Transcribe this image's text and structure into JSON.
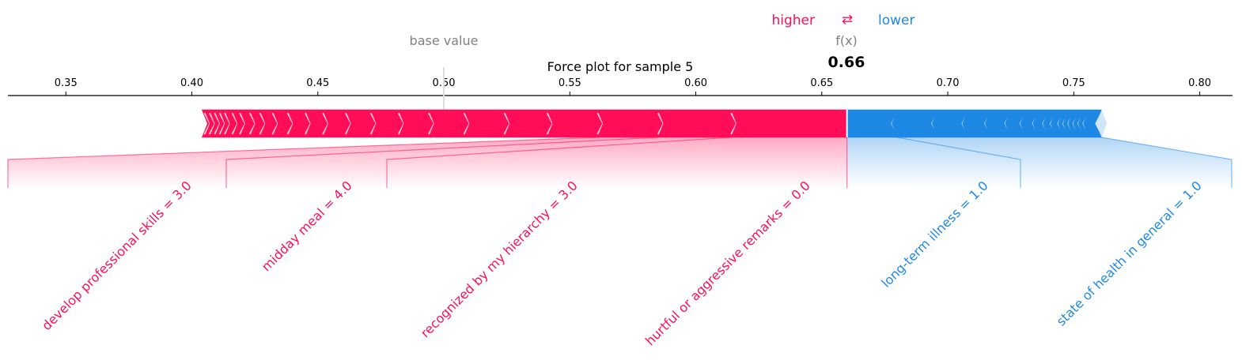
{
  "chart_data": {
    "type": "force",
    "title": "Force plot for sample 5",
    "xlim": [
      0.327,
      0.813
    ],
    "ticks": [
      {
        "v": 0.35,
        "label": "0.35"
      },
      {
        "v": 0.4,
        "label": "0.40"
      },
      {
        "v": 0.45,
        "label": "0.45"
      },
      {
        "v": 0.5,
        "label": "0.50"
      },
      {
        "v": 0.55,
        "label": "0.55"
      },
      {
        "v": 0.6,
        "label": "0.60"
      },
      {
        "v": 0.65,
        "label": "0.65"
      },
      {
        "v": 0.7,
        "label": "0.70"
      },
      {
        "v": 0.75,
        "label": "0.75"
      },
      {
        "v": 0.8,
        "label": "0.80"
      }
    ],
    "base_value": 0.5,
    "base_value_label": "base value",
    "fx_label": "f(x)",
    "fx_value": 0.66,
    "fx_text": "0.66",
    "legend": {
      "higher": "higher",
      "lower": "lower",
      "arrows": "⇄"
    },
    "colors": {
      "positive": "#ff0d57",
      "negative": "#1e88e5",
      "positive_light": "#ffc3d5",
      "negative_light": "#d1e6fa"
    },
    "positive_boundaries": [
      0.404,
      0.405,
      0.407,
      0.409,
      0.411,
      0.413,
      0.416,
      0.419,
      0.423,
      0.427,
      0.432,
      0.438,
      0.445,
      0.452,
      0.461,
      0.471,
      0.482,
      0.494,
      0.508,
      0.524,
      0.541,
      0.561,
      0.585,
      0.614,
      0.66
    ],
    "negative_boundaries": [
      0.66,
      0.68,
      0.696,
      0.708,
      0.717,
      0.725,
      0.731,
      0.736,
      0.74,
      0.743,
      0.746,
      0.748,
      0.75,
      0.752,
      0.754,
      0.756,
      0.761
    ],
    "features": [
      {
        "label": "develop professional skills = 3.0",
        "from": 0.404,
        "to": 0.561,
        "effect": "positive"
      },
      {
        "label": "midday meal = 4.0",
        "from": 0.561,
        "to": 0.585,
        "effect": "positive"
      },
      {
        "label": "recognized by my hierarchy = 3.0",
        "from": 0.585,
        "to": 0.614,
        "effect": "positive"
      },
      {
        "label": "hurtful or aggressive remarks = 0.0",
        "from": 0.614,
        "to": 0.66,
        "effect": "positive"
      },
      {
        "label": "long-term illness = 1.0",
        "from": 0.66,
        "to": 0.68,
        "effect": "negative"
      },
      {
        "label": "state of health in general = 1.0",
        "from": 0.68,
        "to": 0.761,
        "effect": "negative"
      }
    ]
  }
}
